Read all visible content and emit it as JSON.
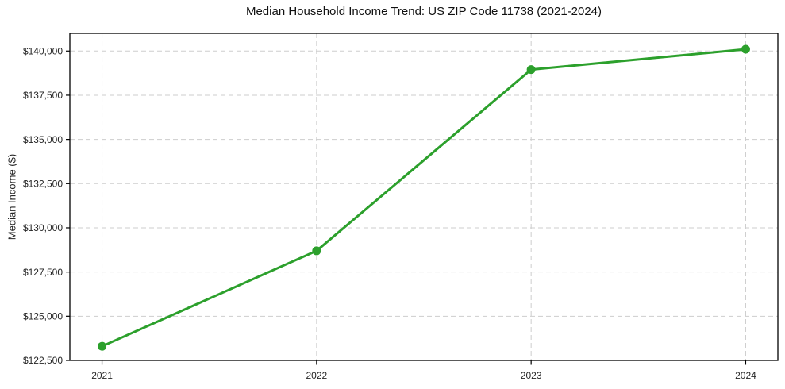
{
  "chart_data": {
    "type": "line",
    "title": "Median Household Income Trend: US ZIP Code 11738 (2021-2024)",
    "xlabel": "",
    "ylabel": "Median Income ($)",
    "x": [
      2021,
      2022,
      2023,
      2024
    ],
    "x_tick_labels": [
      "2021",
      "2022",
      "2023",
      "2024"
    ],
    "values": [
      123300,
      128700,
      138950,
      140100
    ],
    "y_ticks": [
      122500,
      125000,
      127500,
      130000,
      132500,
      135000,
      137500,
      140000
    ],
    "y_tick_labels": [
      "$122,500",
      "$125,000",
      "$127,500",
      "$130,000",
      "$132,500",
      "$135,000",
      "$137,500",
      "$140,000"
    ],
    "xlim": [
      2020.85,
      2024.15
    ],
    "ylim": [
      122500,
      141000
    ],
    "grid": true,
    "grid_style": "dashed",
    "legend": "none",
    "marker": "circle",
    "colors": {
      "line": "#2ca02c",
      "grid": "#cdcdcd",
      "spine": "#000000",
      "text": "#262626",
      "background": "#ffffff"
    }
  }
}
